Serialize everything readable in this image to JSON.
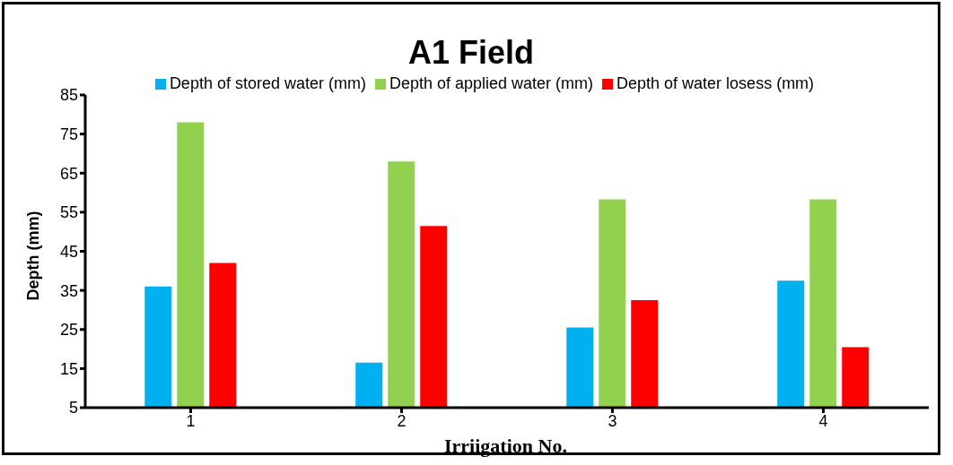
{
  "chart_data": {
    "type": "bar",
    "title": "A1 Field",
    "xlabel": "Irriigation No.",
    "ylabel": "Depth (mm)",
    "categories": [
      "1",
      "2",
      "3",
      "4"
    ],
    "series": [
      {
        "name": "Depth of stored water (mm)",
        "color": "#00b0f0",
        "values": [
          36,
          16.5,
          25.5,
          37.5
        ]
      },
      {
        "name": "Depth of applied water (mm)",
        "color": "#92d050",
        "values": [
          78,
          68,
          58.3,
          58.3
        ]
      },
      {
        "name": "Depth of water losess (mm)",
        "color": "#ff0000",
        "values": [
          42,
          51.5,
          32.5,
          20.5
        ]
      }
    ],
    "ylim": [
      5,
      85
    ],
    "yticks": [
      5,
      15,
      25,
      35,
      45,
      55,
      65,
      75,
      85
    ],
    "grid": false,
    "legend": "top"
  }
}
